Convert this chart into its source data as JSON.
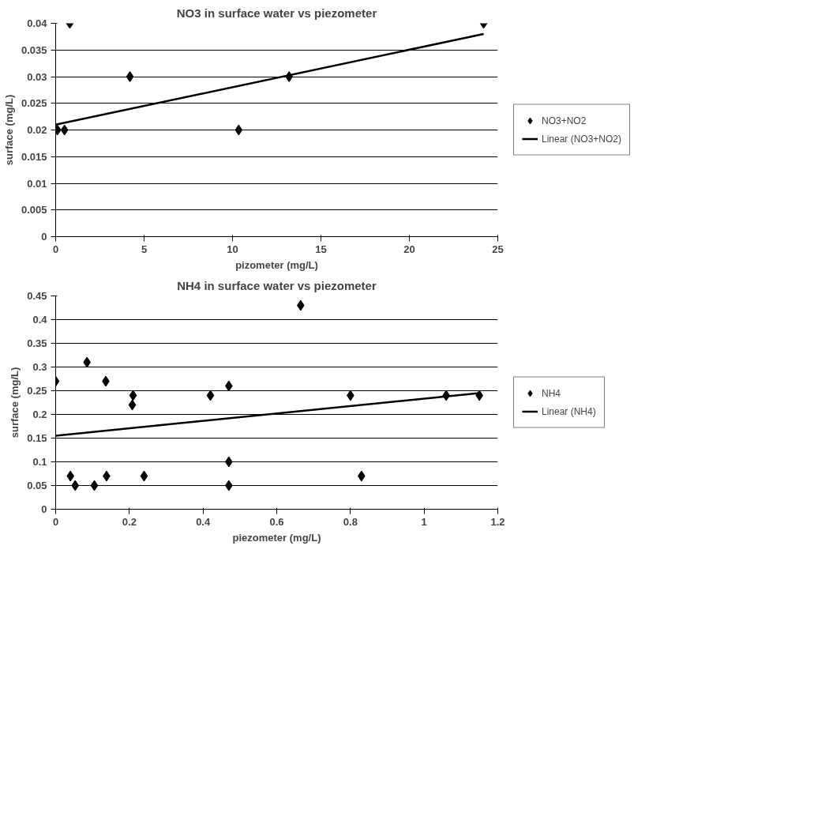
{
  "chart_data": [
    {
      "type": "scatter",
      "title": "NO3 in surface water vs piezometer",
      "xlabel": "pizometer (mg/L)",
      "ylabel": "surface (mg/L)",
      "xlim": [
        0,
        25
      ],
      "xticks": [
        0,
        5,
        10,
        15,
        20,
        25
      ],
      "ylim": [
        0,
        0.04
      ],
      "yticks": [
        0,
        0.005,
        0.01,
        0.015,
        0.02,
        0.025,
        0.03,
        0.035,
        0.04
      ],
      "grid": "y",
      "legend": "right",
      "series": [
        {
          "name": "NO3+NO2",
          "marker": "diamond",
          "color": "#000000",
          "x": [
            0.8,
            4.2,
            0.1,
            0.5,
            10.35,
            13.2,
            24.2
          ],
          "values": [
            0.04,
            0.03,
            0.02,
            0.02,
            0.02,
            0.03,
            0.04
          ]
        },
        {
          "name": "Linear (NO3+NO2)",
          "type": "line",
          "marker": "none",
          "color": "#000000",
          "x": [
            0,
            24.2
          ],
          "values": [
            0.021,
            0.038
          ]
        }
      ]
    },
    {
      "type": "scatter",
      "title": "NH4 in surface water vs piezometer",
      "xlabel": "piezometer (mg/L)",
      "ylabel": "surface (mg/L)",
      "xlim": [
        0,
        1.2
      ],
      "xticks": [
        0,
        0.2,
        0.4,
        0.6,
        0.8,
        1,
        1.2
      ],
      "ylim": [
        0,
        0.45
      ],
      "yticks": [
        0,
        0.05,
        0.1,
        0.15,
        0.2,
        0.25,
        0.3,
        0.35,
        0.4,
        0.45
      ],
      "grid": "y",
      "legend": "right",
      "series": [
        {
          "name": "NH4",
          "marker": "diamond",
          "color": "#000000",
          "x": [
            0.0,
            0.04,
            0.053,
            0.085,
            0.105,
            0.136,
            0.138,
            0.21,
            0.208,
            0.24,
            0.42,
            0.47,
            0.47,
            0.47,
            0.665,
            0.8,
            0.83,
            1.06,
            1.15
          ],
          "values": [
            0.27,
            0.07,
            0.05,
            0.31,
            0.05,
            0.27,
            0.07,
            0.24,
            0.22,
            0.07,
            0.24,
            0.26,
            0.1,
            0.05,
            0.43,
            0.24,
            0.07,
            0.24,
            0.24
          ]
        },
        {
          "name": "Linear (NH4)",
          "type": "line",
          "marker": "none",
          "color": "#000000",
          "x": [
            0,
            1.15
          ],
          "values": [
            0.155,
            0.245
          ]
        }
      ]
    }
  ]
}
